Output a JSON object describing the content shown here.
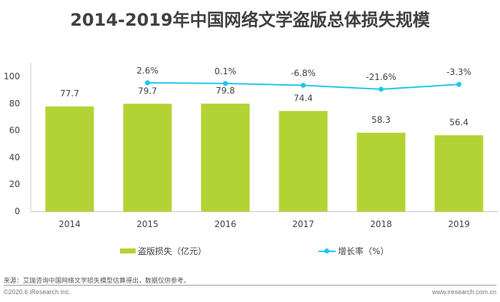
{
  "title": "2014-2019年中国网络文学盗版总体损失规模",
  "chart_data": {
    "type": "bar",
    "title": "2014-2019年中国网络文学盗版总体损失规模",
    "categories": [
      "2014",
      "2015",
      "2016",
      "2017",
      "2018",
      "2019"
    ],
    "xlabel": "",
    "ylabel": "",
    "ylim": [
      0,
      110
    ],
    "yticks": [
      0,
      20,
      40,
      60,
      80,
      100
    ],
    "grid": false,
    "legend_position": "bottom",
    "series": [
      {
        "name": "盗版损失（亿元）",
        "type": "bar",
        "axis": "primary",
        "color": "#b3d334",
        "values": [
          77.7,
          79.7,
          79.8,
          74.4,
          58.3,
          56.4
        ],
        "labels": [
          "77.7",
          "79.7",
          "79.8",
          "74.4",
          "58.3",
          "56.4"
        ]
      },
      {
        "name": "增长率（%）",
        "type": "line",
        "axis": "secondary",
        "color": "#1ec6f0",
        "values": [
          null,
          2.6,
          0.1,
          -6.8,
          -21.6,
          -3.3
        ],
        "labels": [
          null,
          "2.6%",
          "0.1%",
          "-6.8%",
          "-21.6%",
          "-3.3%"
        ]
      }
    ],
    "y2lim": [
      -484,
      78
    ],
    "y2_visible": false
  },
  "legend": {
    "bar_label": "盗版损失（亿元）",
    "line_label": "增长率（%）"
  },
  "footer": {
    "source": "来源：艾瑞咨询中国网络文学损失模型估算得出，数据仅供参考。",
    "copyright": "©2020.6 iResearch Inc.",
    "website": "www.iresearch.com.cn"
  }
}
